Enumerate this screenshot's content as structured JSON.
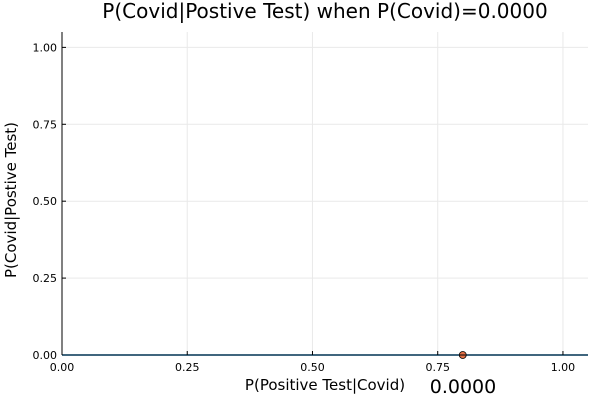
{
  "chart_data": {
    "type": "line",
    "title": "P(Covid|Postive Test) when P(Covid)=0.0000",
    "xlabel": "P(Positive Test|Covid)",
    "ylabel": "P(Covid|Postive Test)",
    "xlim": [
      0,
      1.05
    ],
    "ylim": [
      0,
      1.05
    ],
    "x_ticks": [
      "0.00",
      "0.25",
      "0.50",
      "0.75",
      "1.00"
    ],
    "y_ticks": [
      "0.00",
      "0.25",
      "0.50",
      "0.75",
      "1.00"
    ],
    "grid": true,
    "series": [
      {
        "color": "#009af9",
        "x": [
          0,
          1.05
        ],
        "y": [
          0,
          0
        ]
      }
    ],
    "marker": {
      "x": 0.8,
      "y": 0.0,
      "color": "#e26f46"
    },
    "annotation": "0.0000"
  }
}
